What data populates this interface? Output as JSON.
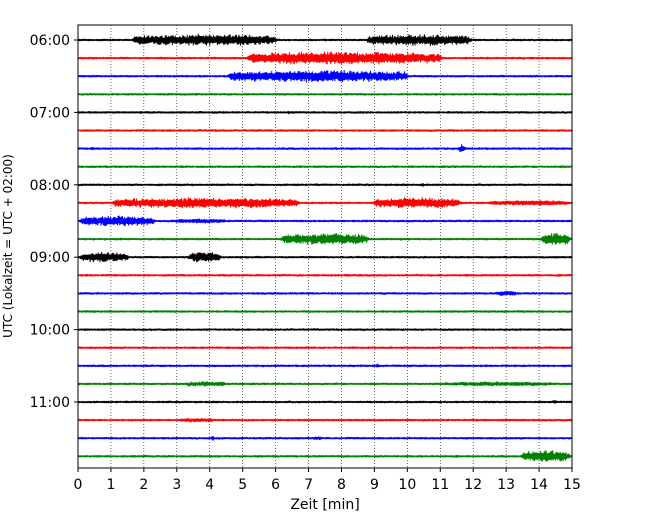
{
  "chart_data": {
    "type": "line",
    "xlabel": "Zeit  [min]",
    "ylabel": "UTC (Lokalzeit = UTC + 02:00)",
    "xlim": [
      0,
      15
    ],
    "x_ticks": [
      "0",
      "1",
      "2",
      "3",
      "4",
      "5",
      "6",
      "7",
      "8",
      "9",
      "10",
      "11",
      "12",
      "13",
      "14",
      "15"
    ],
    "y_ticks": [
      {
        "label": "06:00",
        "trace": 0
      },
      {
        "label": "07:00",
        "trace": 4
      },
      {
        "label": "08:00",
        "trace": 8
      },
      {
        "label": "09:00",
        "trace": 12
      },
      {
        "label": "10:00",
        "trace": 16
      },
      {
        "label": "11:00",
        "trace": 20
      }
    ],
    "grid": "vertical dotted",
    "trace_colors": [
      "#000000",
      "#ff0000",
      "#0000ff",
      "#008000"
    ],
    "traces": [
      {
        "start": "06:00",
        "events": [
          [
            1.6,
            6.1,
            0.8
          ],
          [
            8.7,
            12.0,
            0.8
          ]
        ]
      },
      {
        "start": "06:15",
        "events": [
          [
            5.1,
            11.1,
            0.9
          ]
        ]
      },
      {
        "start": "06:30",
        "events": [
          [
            4.5,
            10.1,
            0.85
          ]
        ]
      },
      {
        "start": "06:45",
        "events": []
      },
      {
        "start": "07:00",
        "events": [
          [
            6.3,
            6.5,
            0.35
          ]
        ]
      },
      {
        "start": "07:15",
        "events": [
          [
            5.8,
            5.9,
            0.4
          ]
        ]
      },
      {
        "start": "07:30",
        "events": [
          [
            0.3,
            0.6,
            0.3
          ],
          [
            11.5,
            11.8,
            0.7
          ],
          [
            14.8,
            15.0,
            0.3
          ]
        ]
      },
      {
        "start": "07:45",
        "events": []
      },
      {
        "start": "08:00",
        "events": [
          [
            10.3,
            10.6,
            0.35
          ]
        ]
      },
      {
        "start": "08:15",
        "events": [
          [
            1.0,
            6.8,
            0.75
          ],
          [
            8.9,
            11.7,
            0.75
          ],
          [
            12.4,
            15.0,
            0.35
          ]
        ]
      },
      {
        "start": "08:30",
        "events": [
          [
            0.0,
            2.4,
            0.7
          ],
          [
            2.8,
            4.6,
            0.3
          ]
        ]
      },
      {
        "start": "08:45",
        "events": [
          [
            6.1,
            8.9,
            0.8
          ],
          [
            14.0,
            15.0,
            0.9
          ]
        ]
      },
      {
        "start": "09:00",
        "events": [
          [
            0.0,
            1.6,
            0.7
          ],
          [
            3.3,
            4.4,
            0.75
          ],
          [
            9.5,
            9.6,
            0.35
          ]
        ]
      },
      {
        "start": "09:15",
        "events": [
          [
            14.5,
            14.7,
            0.3
          ]
        ]
      },
      {
        "start": "09:30",
        "events": [
          [
            12.6,
            13.4,
            0.35
          ]
        ]
      },
      {
        "start": "09:45",
        "events": []
      },
      {
        "start": "10:00",
        "events": []
      },
      {
        "start": "10:15",
        "events": []
      },
      {
        "start": "10:30",
        "events": [
          [
            9.0,
            9.2,
            0.6
          ]
        ]
      },
      {
        "start": "10:45",
        "events": [
          [
            3.2,
            4.6,
            0.35
          ],
          [
            11.0,
            14.5,
            0.3
          ]
        ]
      },
      {
        "start": "11:00",
        "events": [
          [
            14.3,
            14.6,
            0.3
          ]
        ]
      },
      {
        "start": "11:15",
        "events": [
          [
            3.0,
            4.2,
            0.3
          ]
        ]
      },
      {
        "start": "11:30",
        "events": [
          [
            4.0,
            4.2,
            0.6
          ],
          [
            7.0,
            7.5,
            0.25
          ]
        ]
      },
      {
        "start": "11:45",
        "events": [
          [
            11.4,
            11.6,
            0.35
          ],
          [
            13.4,
            15.0,
            0.8
          ]
        ]
      }
    ]
  }
}
